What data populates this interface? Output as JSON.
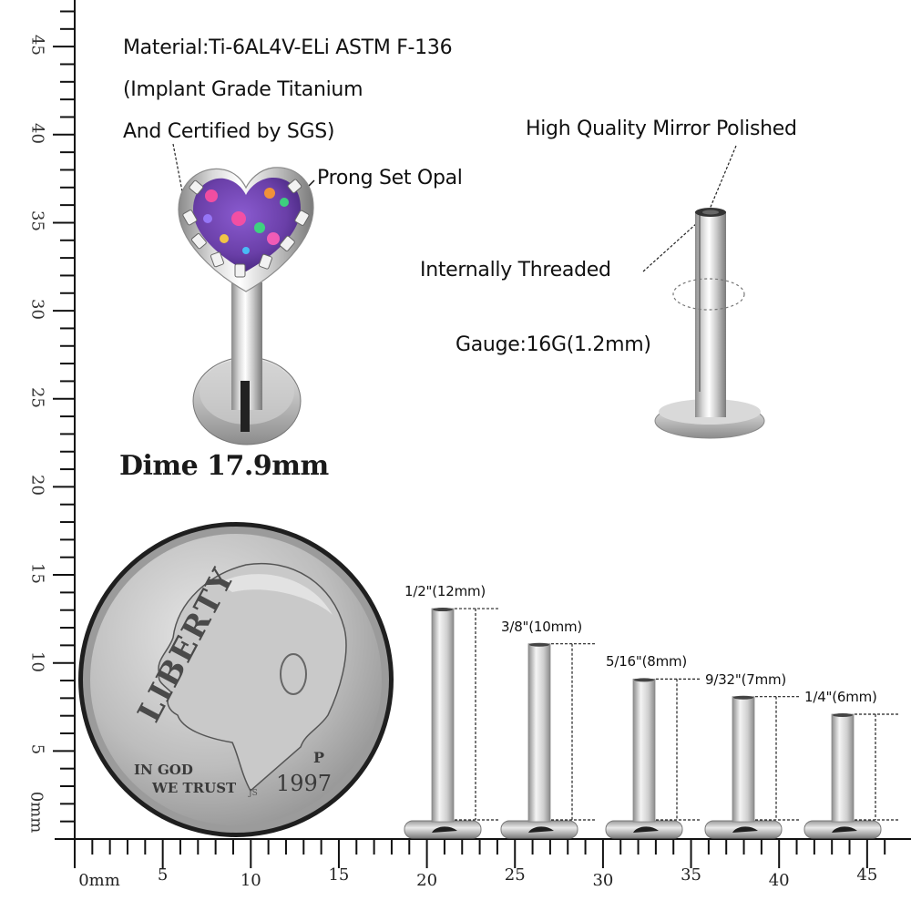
{
  "specs": {
    "material_line1": "Material:Ti-6AL4V-ELi ASTM F-136",
    "material_line2": "(Implant Grade Titanium",
    "material_line3": "And Certified by SGS)"
  },
  "callouts": {
    "prong_set_opal": "Prong Set Opal",
    "mirror_polished": "High Quality Mirror Polished",
    "internally_threaded": "Internally Threaded",
    "gauge": "Gauge:16G(1.2mm)"
  },
  "dime": {
    "label": "Dime 17.9mm",
    "diameter_mm": 17.9,
    "inscription_liberty": "LIBERTY",
    "inscription_motto_1": "IN GOD",
    "inscription_motto_2": "WE TRUST",
    "year": "1997",
    "mint_mark": "P",
    "designer_initials": "JS"
  },
  "post_lengths": [
    {
      "label": "1/2\"(12mm)",
      "length_mm": 12
    },
    {
      "label": "3/8\"(10mm)",
      "length_mm": 10
    },
    {
      "label": "5/16\"(8mm)",
      "length_mm": 8
    },
    {
      "label": "9/32\"(7mm)",
      "length_mm": 7
    },
    {
      "label": "1/4\"(6mm)",
      "length_mm": 6
    }
  ],
  "ruler": {
    "unit": "mm",
    "x_axis": {
      "labels": [
        "0mm",
        "5",
        "10",
        "15",
        "20",
        "25",
        "30",
        "35",
        "40",
        "45"
      ],
      "min": 0,
      "max": 46,
      "major_step": 5,
      "minor_step": 1
    },
    "y_axis": {
      "labels": [
        "0mm",
        "5",
        "10",
        "15",
        "20",
        "25",
        "30",
        "35",
        "40",
        "45"
      ],
      "min": 0,
      "max": 47,
      "major_step": 5,
      "minor_step": 1
    }
  },
  "colors": {
    "background": "#ffffff",
    "text": "#111111",
    "ruler": "#111111",
    "steel_light": "#eeeeee",
    "steel_mid": "#b8b8b8",
    "steel_dark": "#6e6e6e",
    "opal_base": "#6a3fa8",
    "opal_pink": "#ff4fa0",
    "opal_green": "#39e07a",
    "opal_orange": "#ff9a2e",
    "coin_face": "#b9b9b9",
    "coin_rim": "#2a2a2a"
  }
}
